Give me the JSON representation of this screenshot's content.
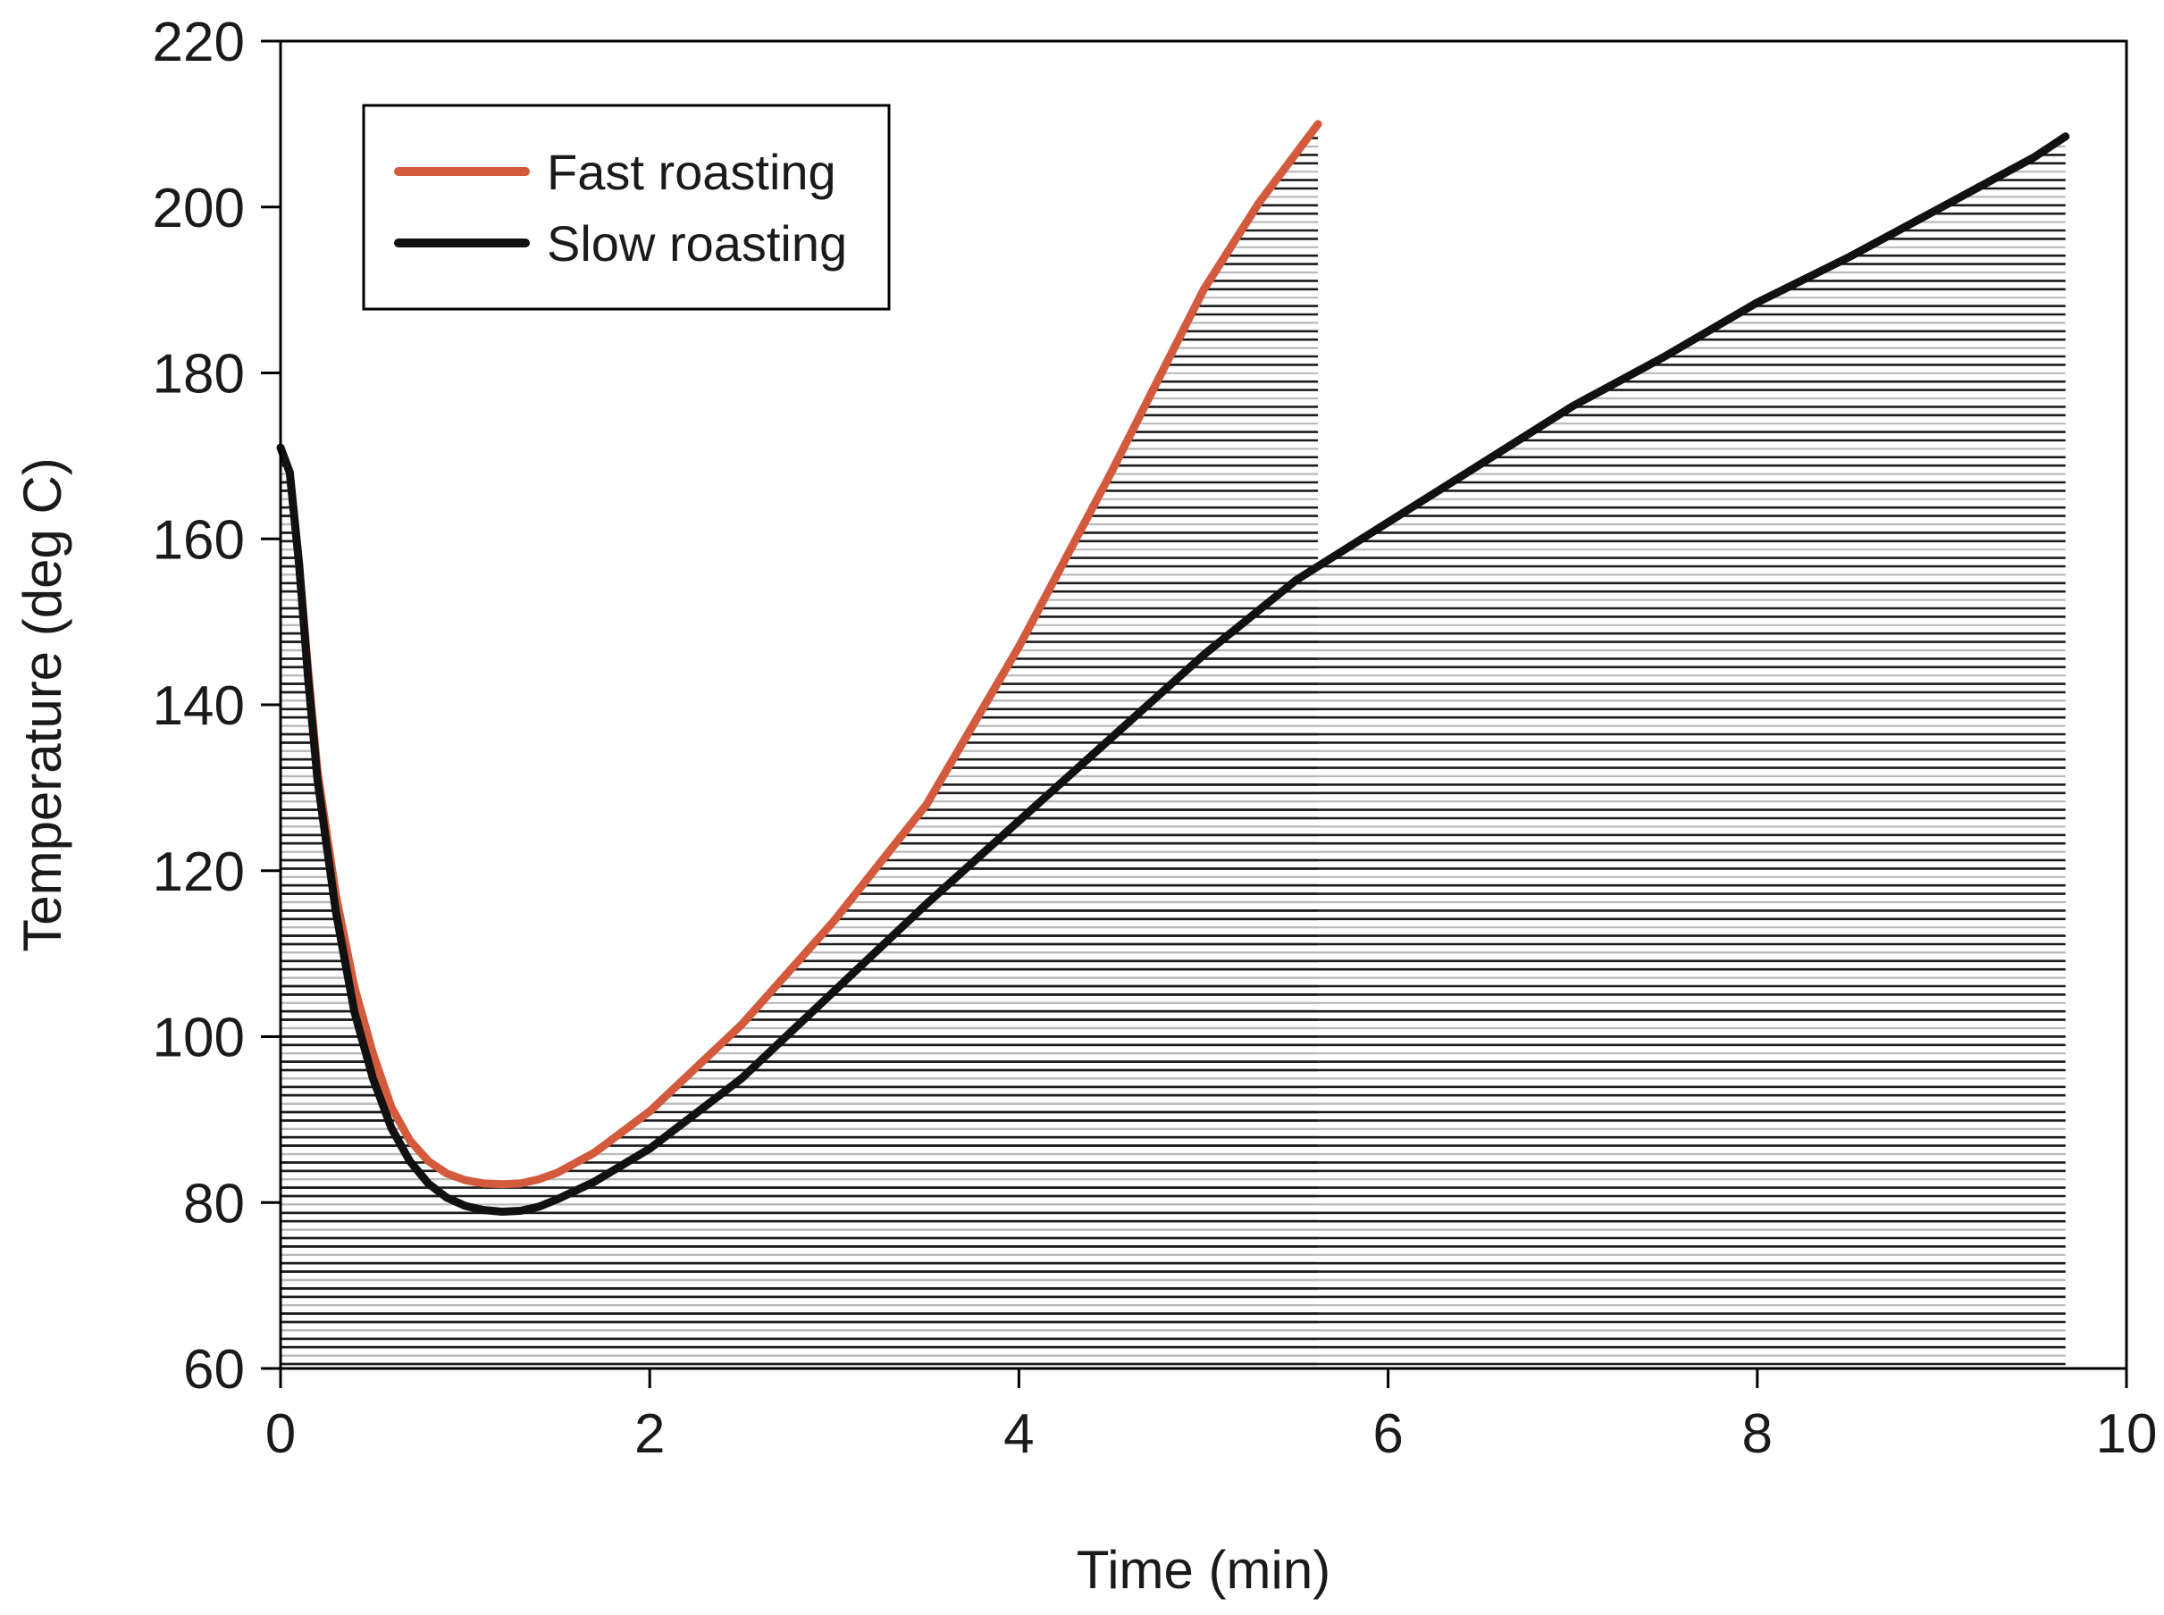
{
  "chart_data": {
    "type": "line",
    "title": "",
    "xlabel": "Time (min)",
    "ylabel": "Temperature (deg C)",
    "xlim": [
      0,
      10
    ],
    "ylim": [
      60,
      220
    ],
    "xticks": [
      0,
      2,
      4,
      6,
      8,
      10
    ],
    "yticks": [
      60,
      80,
      100,
      120,
      140,
      160,
      180,
      200,
      220
    ],
    "legend_position": "top-left",
    "fill": "horizontal hatching under each curve",
    "series": [
      {
        "name": "Fast roasting",
        "color": "#d35a3c",
        "x": [
          0.0,
          0.05,
          0.1,
          0.15,
          0.2,
          0.3,
          0.4,
          0.5,
          0.6,
          0.7,
          0.8,
          0.9,
          1.0,
          1.1,
          1.2,
          1.3,
          1.4,
          1.5,
          1.7,
          2.0,
          2.5,
          3.0,
          3.5,
          4.0,
          4.5,
          5.0,
          5.3,
          5.62
        ],
        "y": [
          171,
          168,
          157,
          144,
          132,
          117,
          106,
          98,
          91.5,
          87.5,
          85,
          83.5,
          82.7,
          82.3,
          82.2,
          82.3,
          82.8,
          83.6,
          86,
          91,
          101.5,
          114,
          128,
          147,
          168,
          190,
          200.5,
          210
        ]
      },
      {
        "name": "Slow roasting",
        "color": "#111111",
        "x": [
          0.0,
          0.05,
          0.1,
          0.15,
          0.2,
          0.3,
          0.4,
          0.5,
          0.6,
          0.7,
          0.8,
          0.9,
          1.0,
          1.1,
          1.2,
          1.3,
          1.4,
          1.5,
          1.7,
          2.0,
          2.5,
          3.0,
          3.5,
          4.0,
          4.5,
          5.0,
          5.5,
          6.0,
          6.5,
          7.0,
          7.5,
          8.0,
          8.5,
          9.0,
          9.5,
          9.67
        ],
        "y": [
          171,
          168,
          157,
          143,
          131,
          115,
          103,
          95,
          89,
          85,
          82.3,
          80.6,
          79.6,
          79.1,
          78.9,
          79.0,
          79.5,
          80.4,
          82.5,
          86.5,
          95,
          105.5,
          116,
          126,
          136,
          146,
          155,
          162,
          169,
          176,
          182,
          188.5,
          194,
          200,
          206,
          208.5
        ]
      }
    ]
  }
}
